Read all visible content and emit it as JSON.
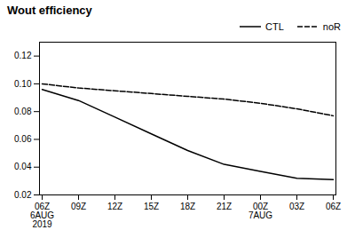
{
  "chart_data": {
    "type": "line",
    "title": "Wout efficiency",
    "categories": [
      "06Z\n6AUG\n2019",
      "09Z",
      "12Z",
      "15Z",
      "18Z",
      "21Z",
      "00Z\n7AUG",
      "03Z",
      "06Z"
    ],
    "series": [
      {
        "name": "CTL",
        "color": "#000000",
        "line_style": "solid",
        "values": [
          0.096,
          0.088,
          0.076,
          0.064,
          0.052,
          0.042,
          0.037,
          0.032,
          0.031
        ]
      },
      {
        "name": "noR",
        "color": "#000000",
        "line_style": "dashed",
        "values": [
          0.1,
          0.097,
          0.095,
          0.093,
          0.091,
          0.089,
          0.086,
          0.082,
          0.077
        ]
      }
    ],
    "ylim": [
      0.02,
      0.13
    ],
    "yticks": [
      0.02,
      0.04,
      0.06,
      0.08,
      {
        "value": 0.1,
        "label": "0.10"
      },
      0.12
    ],
    "grid": false,
    "legend": "upper right"
  }
}
